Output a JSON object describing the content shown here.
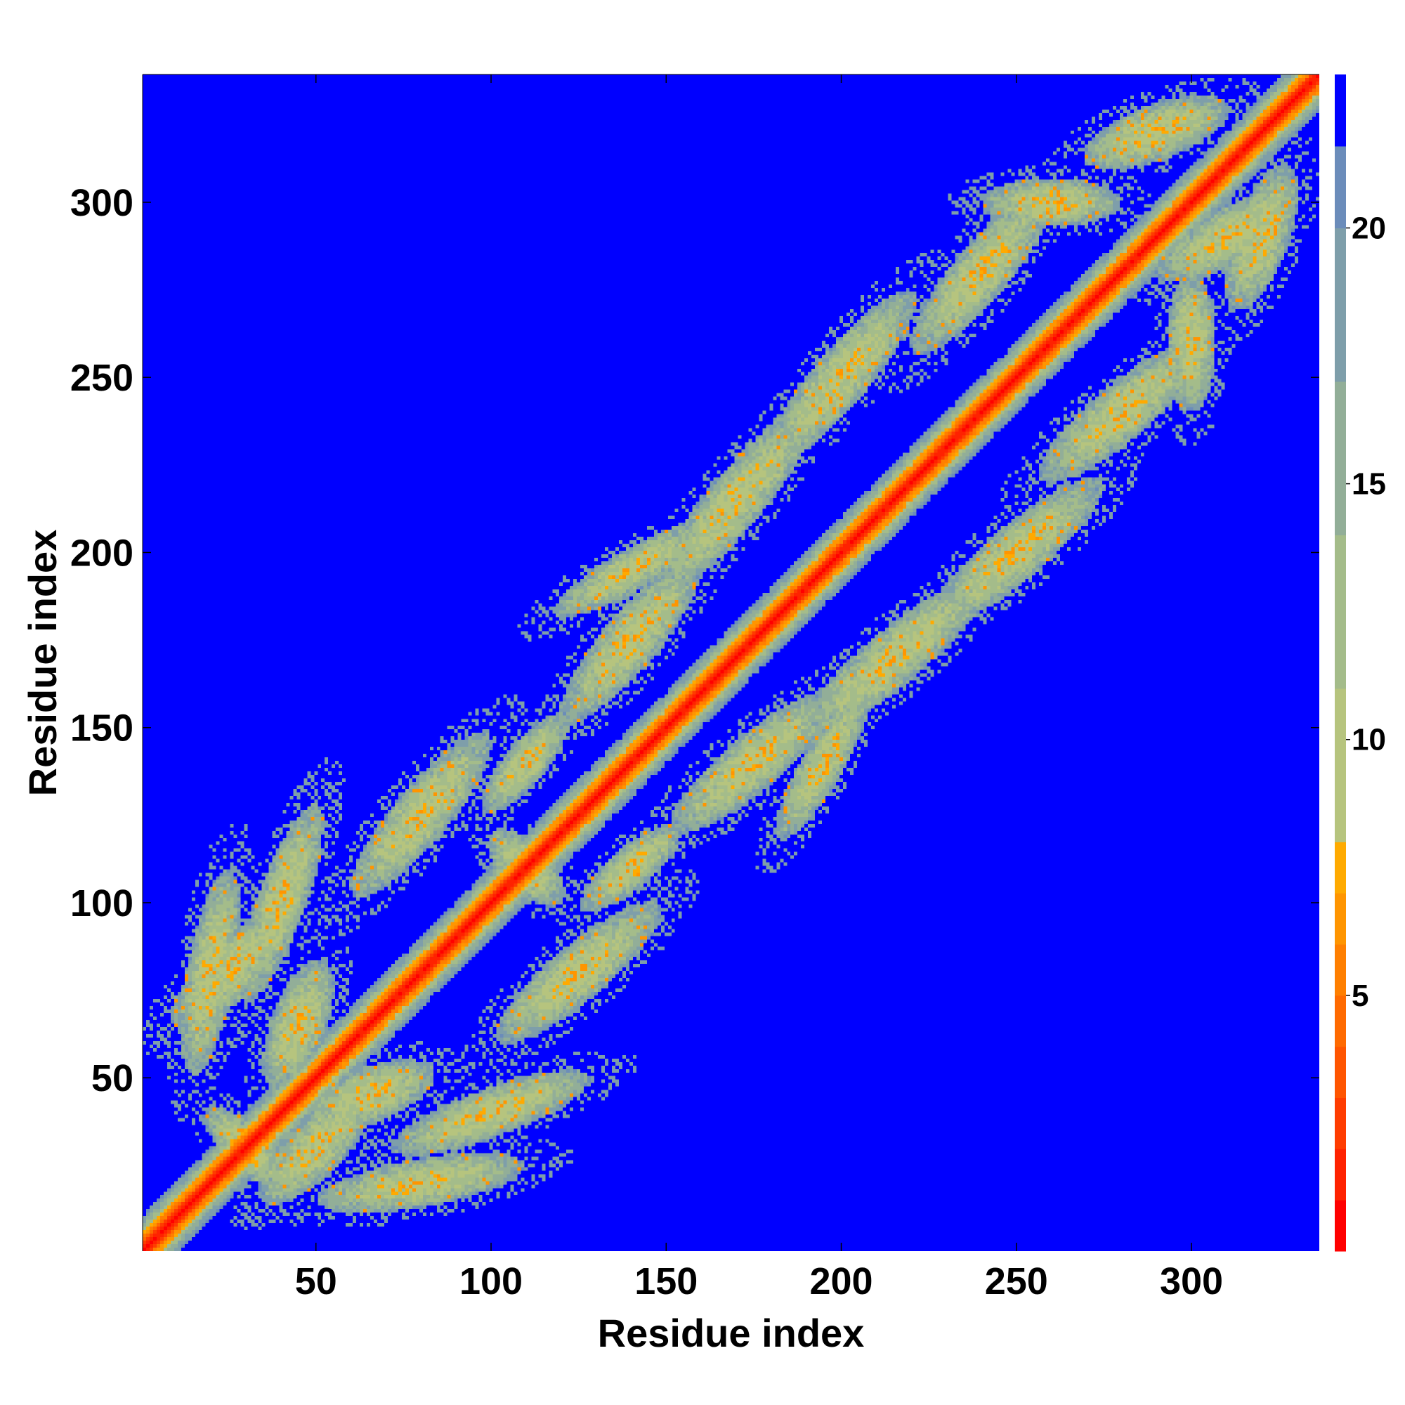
{
  "chart_data": {
    "type": "heatmap",
    "xlabel": "Residue index",
    "ylabel": "Residue index",
    "x_range": [
      1,
      336
    ],
    "y_range": [
      1,
      336
    ],
    "x_ticks": [
      50,
      100,
      150,
      200,
      250,
      300
    ],
    "y_ticks": [
      50,
      100,
      150,
      200,
      250,
      300
    ],
    "grid": false,
    "colorbar": {
      "placement": "right",
      "range": [
        0,
        23
      ],
      "ticks": [
        5,
        10,
        15,
        20
      ],
      "bands": [
        {
          "from": 0,
          "to": 1,
          "color": "#ff0000"
        },
        {
          "from": 1,
          "to": 2,
          "color": "#ff2200"
        },
        {
          "from": 2,
          "to": 3,
          "color": "#ff3c00"
        },
        {
          "from": 3,
          "to": 4,
          "color": "#ff5500"
        },
        {
          "from": 4,
          "to": 5,
          "color": "#ff6a00"
        },
        {
          "from": 5,
          "to": 6,
          "color": "#ff7f00"
        },
        {
          "from": 6,
          "to": 7,
          "color": "#ff9500"
        },
        {
          "from": 7,
          "to": 8,
          "color": "#ffaa00"
        },
        {
          "from": 8,
          "to": 11,
          "color": "#b6c47e"
        },
        {
          "from": 11,
          "to": 14,
          "color": "#a4bc8a"
        },
        {
          "from": 14,
          "to": 17,
          "color": "#92ae98"
        },
        {
          "from": 17,
          "to": 20,
          "color": "#7e9eaa"
        },
        {
          "from": 20,
          "to": 21.6,
          "color": "#6b8cba"
        },
        {
          "from": 21.6,
          "to": 23,
          "color": "#0000ff"
        }
      ]
    },
    "background_value": 23,
    "diagonal_band": {
      "near": 2,
      "mid": 5,
      "halo": 10
    },
    "contact_patches": [
      {
        "center": [
          30,
          30
        ],
        "spread": [
          16,
          6
        ],
        "angle": -45
      },
      {
        "center": [
          25,
          80
        ],
        "spread": [
          22,
          8
        ],
        "angle": 45
      },
      {
        "center": [
          50,
          30
        ],
        "spread": [
          22,
          8
        ],
        "angle": 45
      },
      {
        "center": [
          80,
          20
        ],
        "spread": [
          30,
          7
        ],
        "angle": 10
      },
      {
        "center": [
          20,
          80
        ],
        "spread": [
          30,
          7
        ],
        "angle": 80
      },
      {
        "center": [
          65,
          45
        ],
        "spread": [
          20,
          8
        ],
        "angle": 20
      },
      {
        "center": [
          45,
          65
        ],
        "spread": [
          20,
          8
        ],
        "angle": 70
      },
      {
        "center": [
          110,
          110
        ],
        "spread": [
          14,
          7
        ],
        "angle": -45
      },
      {
        "center": [
          140,
          110
        ],
        "spread": [
          18,
          6
        ],
        "angle": 40
      },
      {
        "center": [
          110,
          140
        ],
        "spread": [
          18,
          6
        ],
        "angle": 50
      },
      {
        "center": [
          125,
          80
        ],
        "spread": [
          30,
          8
        ],
        "angle": 40
      },
      {
        "center": [
          80,
          125
        ],
        "spread": [
          30,
          8
        ],
        "angle": 50
      },
      {
        "center": [
          175,
          140
        ],
        "spread": [
          30,
          8
        ],
        "angle": 40
      },
      {
        "center": [
          140,
          175
        ],
        "spread": [
          30,
          8
        ],
        "angle": 50
      },
      {
        "center": [
          215,
          170
        ],
        "spread": [
          35,
          8
        ],
        "angle": 40
      },
      {
        "center": [
          170,
          215
        ],
        "spread": [
          35,
          8
        ],
        "angle": 50
      },
      {
        "center": [
          250,
          200
        ],
        "spread": [
          32,
          8
        ],
        "angle": 40
      },
      {
        "center": [
          200,
          250
        ],
        "spread": [
          32,
          8
        ],
        "angle": 50
      },
      {
        "center": [
          280,
          240
        ],
        "spread": [
          30,
          8
        ],
        "angle": 40
      },
      {
        "center": [
          240,
          280
        ],
        "spread": [
          30,
          8
        ],
        "angle": 50
      },
      {
        "center": [
          310,
          290
        ],
        "spread": [
          22,
          8
        ],
        "angle": 30
      },
      {
        "center": [
          290,
          320
        ],
        "spread": [
          22,
          8
        ],
        "angle": 20
      },
      {
        "center": [
          320,
          290
        ],
        "spread": [
          22,
          8
        ],
        "angle": 70
      },
      {
        "center": [
          195,
          140
        ],
        "spread": [
          25,
          6
        ],
        "angle": 60
      },
      {
        "center": [
          140,
          195
        ],
        "spread": [
          25,
          6
        ],
        "angle": 30
      },
      {
        "center": [
          100,
          40
        ],
        "spread": [
          30,
          7
        ],
        "angle": 20
      },
      {
        "center": [
          40,
          100
        ],
        "spread": [
          30,
          7
        ],
        "angle": 70
      },
      {
        "center": [
          260,
          300
        ],
        "spread": [
          20,
          7
        ],
        "angle": 0
      },
      {
        "center": [
          300,
          260
        ],
        "spread": [
          20,
          7
        ],
        "angle": 90
      }
    ]
  }
}
